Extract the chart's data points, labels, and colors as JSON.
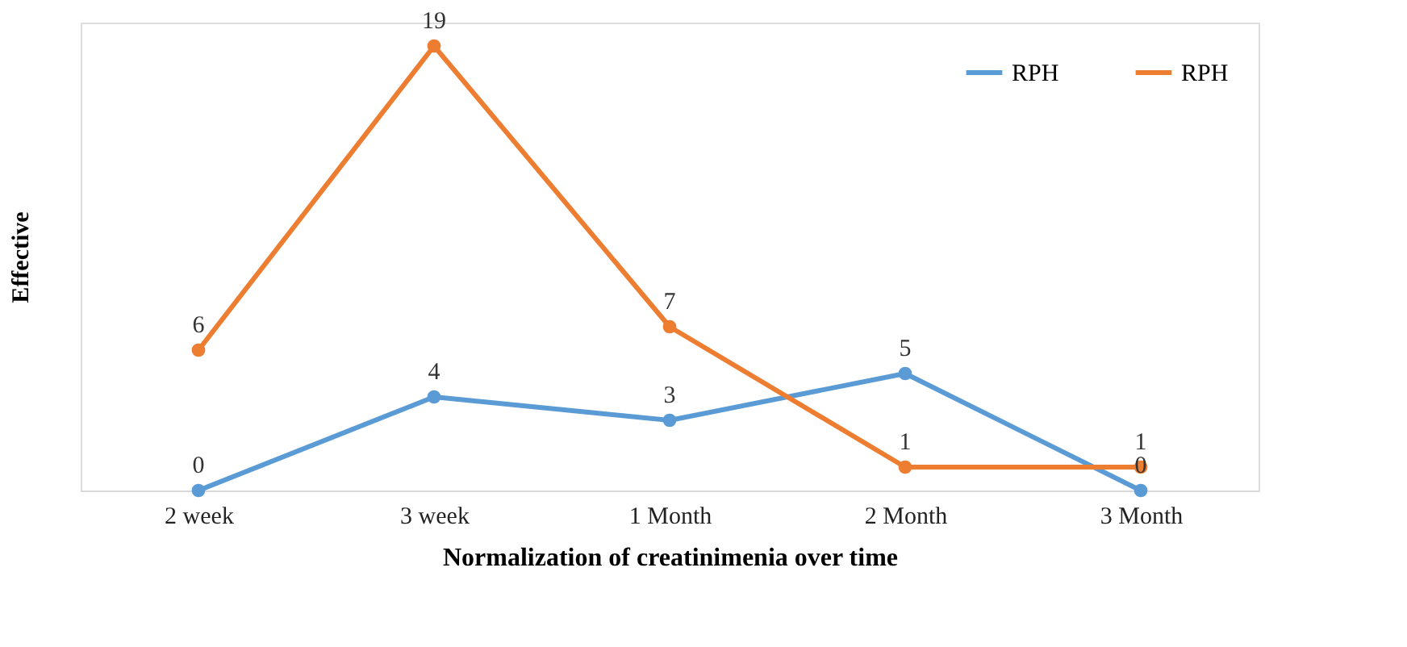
{
  "chart_data": {
    "type": "line",
    "xlabel": "Normalization of creatinimenia over time",
    "ylabel": "Effective",
    "categories": [
      "2 week",
      "3 week",
      "1 Month",
      "2 Month",
      "3 Month"
    ],
    "series": [
      {
        "name": "RPH",
        "color": "#5b9bd5",
        "values": [
          0,
          4,
          3,
          5,
          0
        ]
      },
      {
        "name": "RPH",
        "color": "#ed7d31",
        "values": [
          6,
          19,
          7,
          1,
          1
        ]
      }
    ],
    "ylim": [
      0,
      20
    ],
    "data_labels": true,
    "marker": "circle",
    "line_style": "solid",
    "grid": false,
    "legend": "top right",
    "tick_labels": "x"
  }
}
